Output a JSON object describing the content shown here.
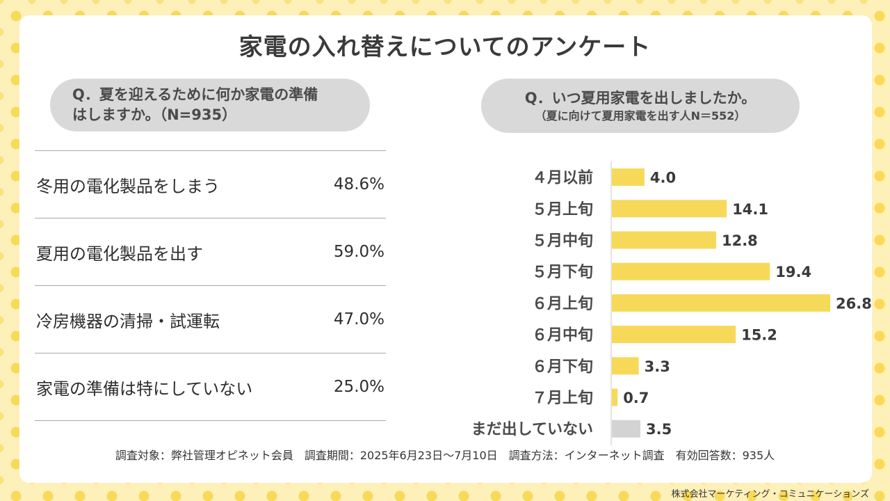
{
  "title": "家電の入れ替えについてのアンケート",
  "left": {
    "question_line1": "Q．夏を迎えるために何か家電の準備",
    "question_line2": "はしますか。（N=935）",
    "items": [
      {
        "label": "冬用の電化製品をしまう",
        "value": "48.6%"
      },
      {
        "label": "夏用の電化製品を出す",
        "value": "59.0%"
      },
      {
        "label": "冷房機器の清掃・試運転",
        "value": "47.0%"
      },
      {
        "label": "家電の準備は特にしていない",
        "value": "25.0%"
      }
    ]
  },
  "right": {
    "question_line1": "Q．いつ夏用家電を出しましたか。",
    "question_line2": "（夏に向けて夏用家電を出す人N＝552）"
  },
  "chart_data": {
    "type": "bar",
    "orientation": "horizontal",
    "categories": [
      "４月以前",
      "５月上旬",
      "５月中旬",
      "５月下旬",
      "６月上旬",
      "６月中旬",
      "６月下旬",
      "７月上旬",
      "まだ出していない"
    ],
    "values": [
      4.0,
      14.1,
      12.8,
      19.4,
      26.8,
      15.2,
      3.3,
      0.7,
      3.5
    ],
    "value_labels": [
      "4.0",
      "14.1",
      "12.8",
      "19.4",
      "26.8",
      "15.2",
      "3.3",
      "0.7",
      "3.5"
    ],
    "xlim": [
      0,
      26.8
    ],
    "colors": [
      "#f7d95a",
      "#f7d95a",
      "#f7d95a",
      "#f7d95a",
      "#f7d95a",
      "#f7d95a",
      "#f7d95a",
      "#f7d95a",
      "#d3d3d3"
    ],
    "grid": false
  },
  "footer": "調査対象：弊社管理オピネット会員　調査期間：2025年6月23日～7月10日　調査方法：インターネット調査　有効回答数：935人",
  "company": "株式会社マーケティング・コミュニケーションズ"
}
